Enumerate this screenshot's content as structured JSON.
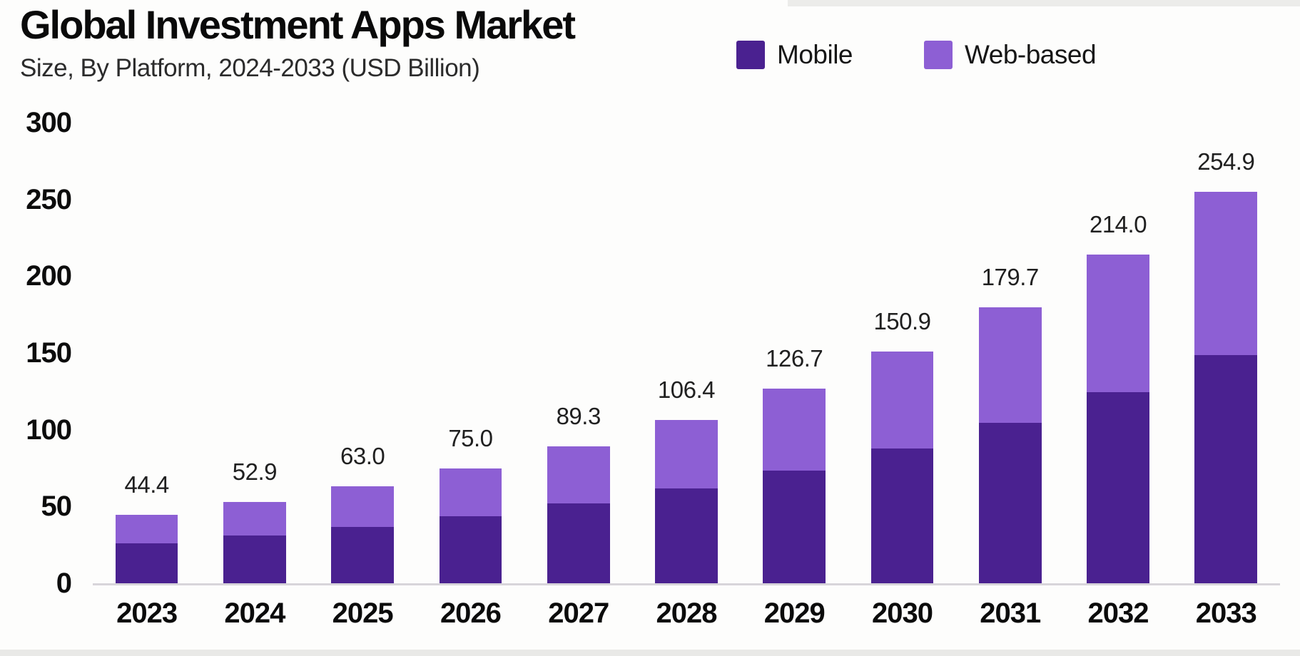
{
  "header": {
    "title": "Global Investment Apps Market",
    "subtitle": "Size, By Platform, 2024-2033 (USD Billion)"
  },
  "legend": [
    {
      "label": "Mobile",
      "color": "#4a2190"
    },
    {
      "label": "Web-based",
      "color": "#8d5fd4"
    }
  ],
  "colors": {
    "mobile": "#4a2190",
    "web_based": "#8d5fd4",
    "baseline": "#d8d5da",
    "value_label": "#202020",
    "axis_label": "#0b0b0b",
    "background": "#fdfdfc"
  },
  "chart_data": {
    "type": "bar",
    "stacked": true,
    "title": "Global Investment Apps Market",
    "subtitle": "Size, By Platform, 2024-2033 (USD Billion)",
    "xlabel": "",
    "ylabel": "USD Billion",
    "ylim": [
      0,
      300
    ],
    "yticks": [
      0,
      50,
      100,
      150,
      200,
      250,
      300
    ],
    "grid": false,
    "legend_position": "top-right",
    "categories": [
      "2023",
      "2024",
      "2025",
      "2026",
      "2027",
      "2028",
      "2029",
      "2030",
      "2031",
      "2032",
      "2033"
    ],
    "series": [
      {
        "name": "Mobile",
        "color": "#4a2190",
        "values": [
          26.0,
          31.0,
          36.8,
          43.5,
          52.0,
          61.8,
          73.5,
          88.0,
          104.5,
          124.5,
          148.5
        ]
      },
      {
        "name": "Web-based",
        "color": "#8d5fd4",
        "values": [
          18.4,
          21.9,
          26.2,
          31.5,
          37.3,
          44.6,
          53.2,
          62.9,
          75.2,
          89.5,
          106.4
        ]
      }
    ],
    "totals": [
      44.4,
      52.9,
      63.0,
      75.0,
      89.3,
      106.4,
      126.7,
      150.9,
      179.7,
      214.0,
      254.9
    ],
    "total_labels": [
      "44.4",
      "52.9",
      "63.0",
      "75.0",
      "89.3",
      "106.4",
      "126.7",
      "150.9",
      "179.7",
      "214.0",
      "254.9"
    ]
  }
}
